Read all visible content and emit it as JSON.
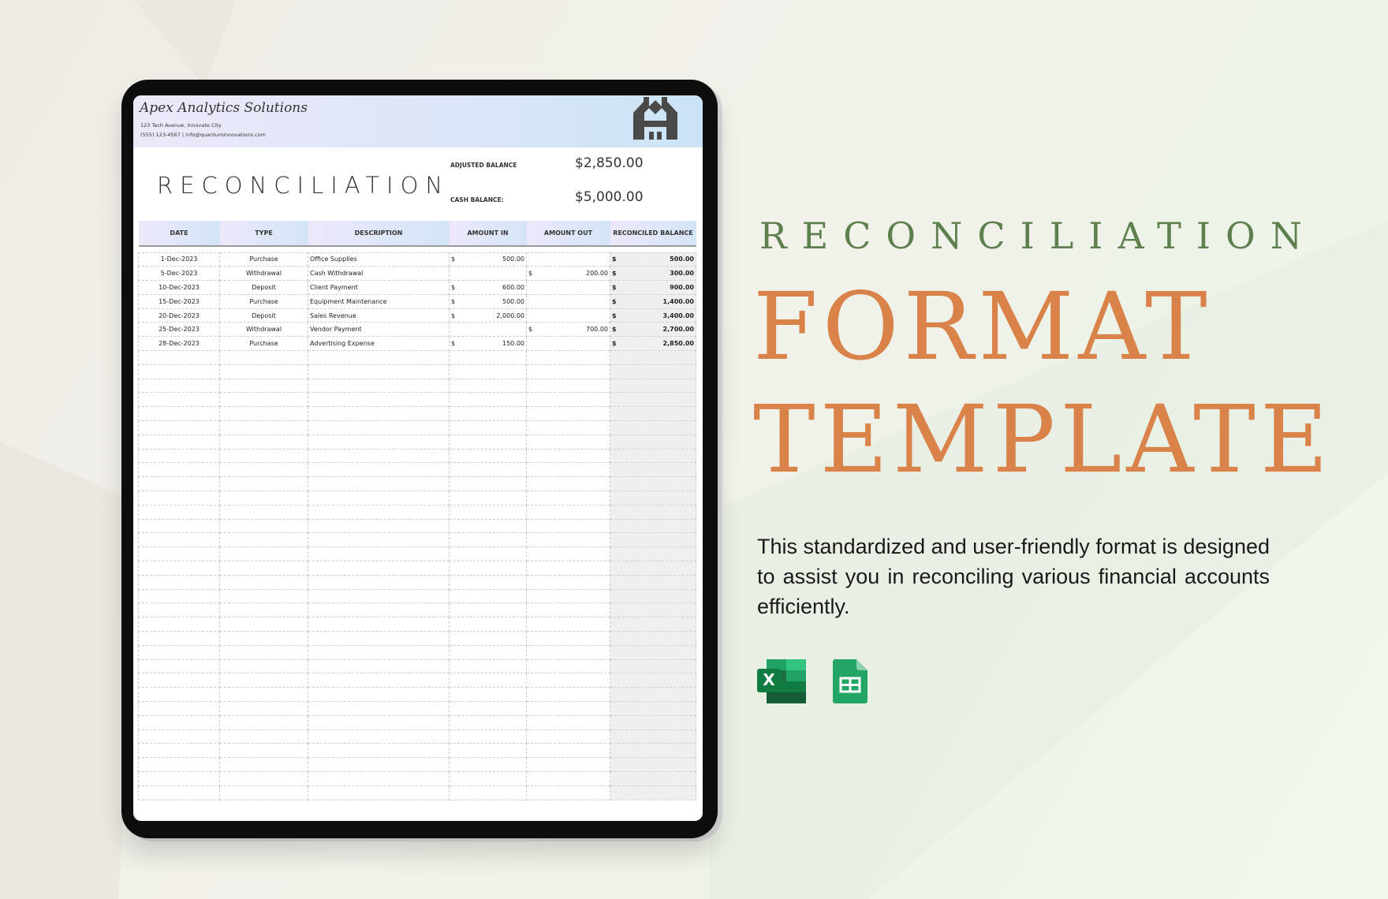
{
  "company": {
    "name": "Apex Analytics Solutions",
    "address": "123 Tech Avenue, Innovate City",
    "contact": "(555) 123-4567 | info@quantuminnovations.com"
  },
  "sheet": {
    "title": "RECONCILIATION",
    "adjusted_label": "ADJUSTED BALANCE",
    "adjusted_value": "$2,850.00",
    "cash_label": "CASH BALANCE:",
    "cash_value": "$5,000.00"
  },
  "columns": [
    "DATE",
    "TYPE",
    "DESCRIPTION",
    "AMOUNT IN",
    "AMOUNT OUT",
    "RECONCILED BALANCE"
  ],
  "currency_symbol": "$",
  "rows": [
    {
      "date": "1-Dec-2023",
      "type": "Purchase",
      "description": "Office Supplies",
      "in": "500.00",
      "out": "",
      "balance": "500.00"
    },
    {
      "date": "5-Dec-2023",
      "type": "Withdrawal",
      "description": "Cash Withdrawal",
      "in": "",
      "out": "200.00",
      "balance": "300.00"
    },
    {
      "date": "10-Dec-2023",
      "type": "Deposit",
      "description": "Client Payment",
      "in": "600.00",
      "out": "",
      "balance": "900.00"
    },
    {
      "date": "15-Dec-2023",
      "type": "Purchase",
      "description": "Equipment Maintenance",
      "in": "500.00",
      "out": "",
      "balance": "1,400.00"
    },
    {
      "date": "20-Dec-2023",
      "type": "Deposit",
      "description": "Sales Revenue",
      "in": "2,000.00",
      "out": "",
      "balance": "3,400.00"
    },
    {
      "date": "25-Dec-2023",
      "type": "Withdrawal",
      "description": "Vendor Payment",
      "in": "",
      "out": "700.00",
      "balance": "2,700.00"
    },
    {
      "date": "28-Dec-2023",
      "type": "Purchase",
      "description": "Advertising Expense",
      "in": "150.00",
      "out": "",
      "balance": "2,850.00"
    }
  ],
  "promo": {
    "heading": "RECONCILIATION",
    "line1": "FORMAT",
    "line2": "TEMPLATE",
    "description": "This standardized and user-friendly format is designed to assist you in reconciling various financial accounts efficiently."
  },
  "icons": [
    "excel-icon",
    "google-sheets-icon"
  ],
  "colors": {
    "heading": "#5e7f4e",
    "accent": "#d9834a",
    "excel": "#1d6f42",
    "sheets": "#23a566"
  }
}
